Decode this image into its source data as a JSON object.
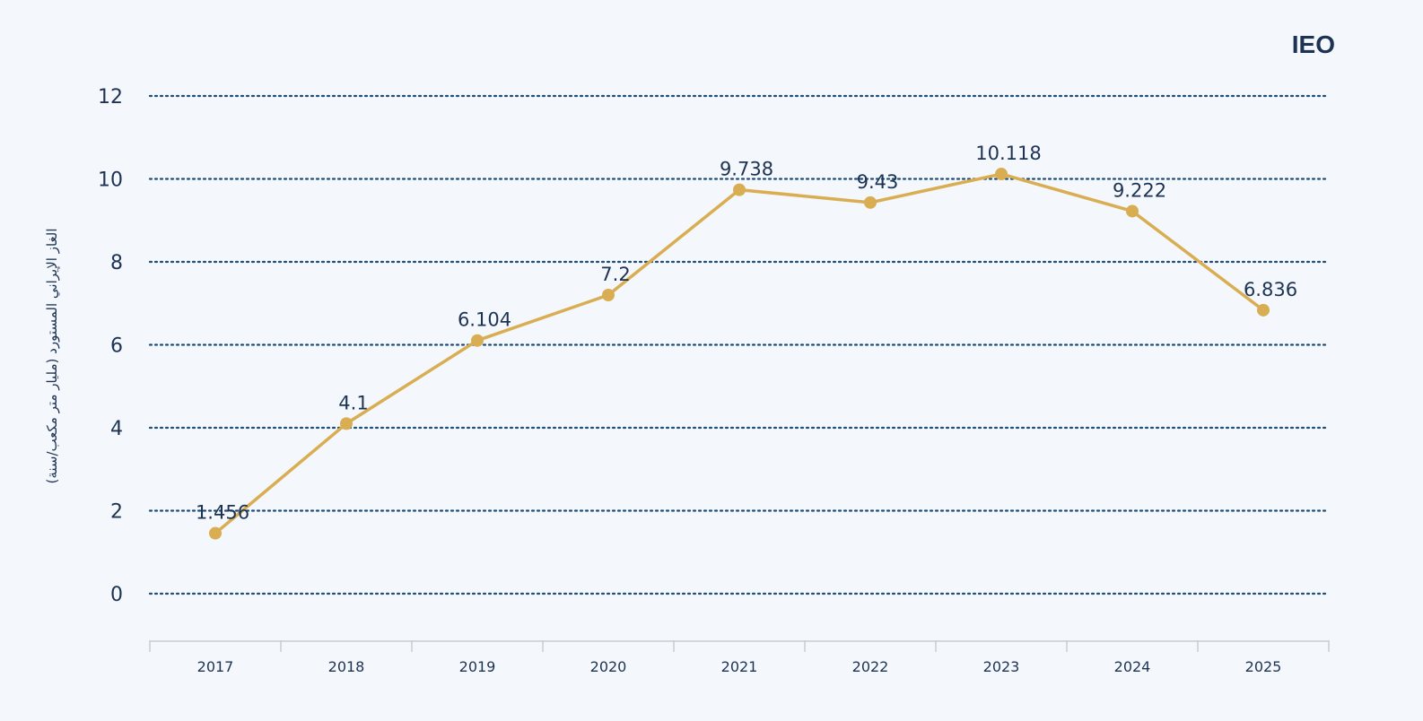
{
  "logo": "IEO",
  "chart_data": {
    "type": "line",
    "title": "",
    "xlabel": "",
    "ylabel": "الغاز الإيراني المستورد (مليار متر مكعب/سنة)",
    "categories": [
      "2017",
      "2018",
      "2019",
      "2020",
      "2021",
      "2022",
      "2023",
      "2024",
      "2025"
    ],
    "series": [
      {
        "values": [
          1.456,
          4.1,
          6.104,
          7.2,
          9.738,
          9.43,
          10.118,
          9.222,
          6.836
        ],
        "labels": [
          "1.456",
          "4.1",
          "6.104",
          "7.2",
          "9.738",
          "9.43",
          "10.118",
          "9.222",
          "6.836"
        ]
      }
    ],
    "ylim": [
      0,
      12
    ],
    "yticks": [
      "0",
      "2",
      "4",
      "6",
      "8",
      "10",
      "12"
    ],
    "grid": "horizontal-dotted",
    "legend": "none",
    "colors": {
      "line": "#d9ad52",
      "grid": "#1f4e79",
      "text": "#1d3354",
      "axis": "#c5cdd8",
      "background": "#f4f7fb"
    }
  }
}
